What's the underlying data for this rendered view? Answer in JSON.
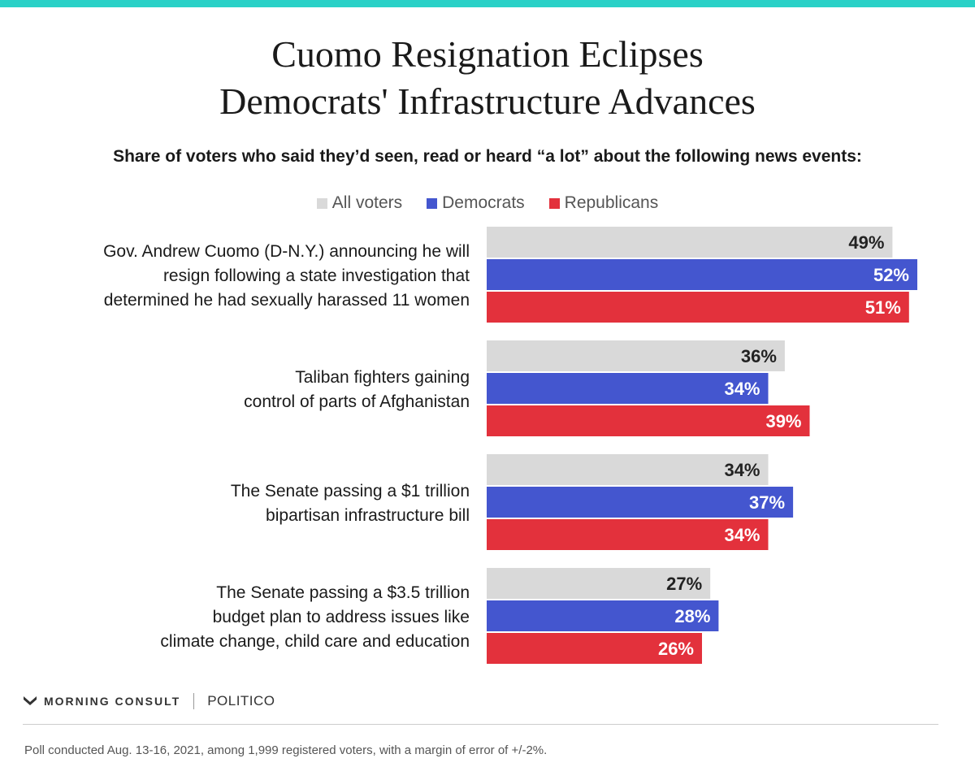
{
  "title_lines": [
    "Cuomo Resignation Eclipses",
    "Democrats' Infrastructure Advances"
  ],
  "subtitle": "Share of voters who said they’d seen, read or heard “a lot” about the following news events:",
  "colors": {
    "top_bar": "#2ad1c7",
    "all_voters": "#d9d9d9",
    "democrats": "#4456cf",
    "republicans": "#e3313c",
    "label_dark": "#222222",
    "label_light": "#ffffff"
  },
  "legend": [
    {
      "label": "All voters",
      "color": "#d9d9d9"
    },
    {
      "label": "Democrats",
      "color": "#4456cf"
    },
    {
      "label": "Republicans",
      "color": "#e3313c"
    }
  ],
  "chart_data": {
    "type": "bar",
    "orientation": "horizontal",
    "title": "Cuomo Resignation Eclipses Democrats' Infrastructure Advances",
    "subtitle": "Share of voters who said they’d seen, read or heard “a lot” about the following news events:",
    "categories": [
      [
        "Gov. Andrew Cuomo (D-N.Y.) announcing he will",
        "resign following a state investigation that",
        "determined he had sexually harassed 11 women"
      ],
      [
        "Taliban fighters gaining",
        "control of parts of Afghanistan"
      ],
      [
        "The Senate passing a $1 trillion",
        "bipartisan infrastructure bill"
      ],
      [
        "The Senate passing a $3.5 trillion",
        "budget plan to address issues like",
        "climate change, child care and education"
      ]
    ],
    "series": [
      {
        "name": "All voters",
        "values": [
          49,
          36,
          34,
          27
        ]
      },
      {
        "name": "Democrats",
        "values": [
          52,
          34,
          37,
          28
        ]
      },
      {
        "name": "Republicans",
        "values": [
          51,
          39,
          34,
          26
        ]
      }
    ],
    "unit": "%",
    "xlim": [
      0,
      52
    ],
    "legend": "top-center",
    "grid": false
  },
  "logos": {
    "morning_consult": "MORNING CONSULT",
    "politico": "POLITICO"
  },
  "footnote": "Poll conducted Aug. 13-16, 2021, among 1,999 registered voters, with a margin of error of +/-2%."
}
